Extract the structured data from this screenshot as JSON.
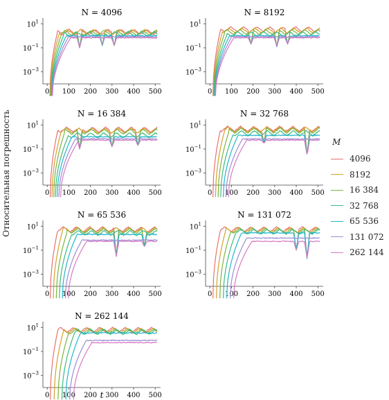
{
  "figure": {
    "ylabel": "Относительная погрешность",
    "xlabel": "t",
    "legend_title": "M"
  },
  "colors": {
    "4096": "#e8706f",
    "8192": "#d3a12a",
    "16384": "#7cb342",
    "32768": "#3dbb7d",
    "65536": "#21b5cf",
    "131072": "#9b8ed1",
    "262144": "#d679c4"
  },
  "legend": [
    {
      "label": "4096",
      "color": "#e8706f"
    },
    {
      "label": "8192",
      "color": "#d3a12a"
    },
    {
      "label": "16 384",
      "color": "#7cb342"
    },
    {
      "label": "32 768",
      "color": "#3dbb7d"
    },
    {
      "label": "65 536",
      "color": "#21b5cf"
    },
    {
      "label": "131 072",
      "color": "#9b8ed1"
    },
    {
      "label": "262 144",
      "color": "#d679c4"
    }
  ],
  "chart_data": {
    "type": "line",
    "x_ticks": [
      0,
      100,
      200,
      300,
      400,
      500
    ],
    "xlim": [
      -20,
      525
    ],
    "y_scale": "log",
    "y_ticks": [
      "10^1",
      "10^-1",
      "10^-3"
    ],
    "ylim": [
      0.0001,
      30
    ],
    "panels": [
      {
        "title": "N = 4096",
        "t0": [
          12,
          14,
          16,
          18,
          20,
          22,
          24
        ],
        "peak": [
          3,
          3,
          2.5,
          2,
          1.5,
          1.2,
          1
        ],
        "dip": {
          "150": 0.1,
          "255": 0.15,
          "310": 0.15
        }
      },
      {
        "title": "N = 8192",
        "t0": [
          14,
          16,
          18,
          20,
          22,
          24,
          26
        ],
        "peak": [
          5,
          4,
          3,
          2,
          1.5,
          1.2,
          1
        ],
        "dip": {
          "190": 0.2,
          "310": 0.12,
          "360": 0.2
        }
      },
      {
        "title": "N = 16 384",
        "t0": [
          14,
          22,
          30,
          38,
          46,
          54,
          62
        ],
        "peak": [
          6,
          5,
          4,
          2,
          1.5,
          1,
          0.8
        ],
        "dip": {
          "150": 0.1,
          "300": 0.15,
          "420": 0.2
        }
      },
      {
        "title": "N = 32 768",
        "t0": [
          14,
          26,
          38,
          50,
          62,
          74,
          86
        ],
        "peak": [
          7,
          6,
          5,
          3,
          2,
          1,
          0.8
        ],
        "dip": {
          "250": 0.3,
          "450": 0.03
        }
      },
      {
        "title": "N = 65 536",
        "t0": [
          14,
          28,
          42,
          56,
          70,
          84,
          98
        ],
        "peak": [
          8,
          7,
          6,
          4,
          3,
          1,
          0.8
        ],
        "dip": {
          "320": 0.03,
          "450": 0.2
        }
      },
      {
        "title": "N = 131 072",
        "t0": [
          14,
          30,
          46,
          62,
          78,
          94,
          110
        ],
        "peak": [
          8,
          7,
          6,
          5,
          4,
          1.5,
          0.8
        ],
        "dip": {
          "400": 0.1,
          "450": 0.02
        }
      },
      {
        "title": "N = 262 144",
        "t0": [
          14,
          32,
          50,
          68,
          86,
          104,
          122
        ],
        "peak": [
          9,
          8,
          7,
          6,
          5,
          1.2,
          0.8
        ],
        "dip": {}
      }
    ]
  }
}
